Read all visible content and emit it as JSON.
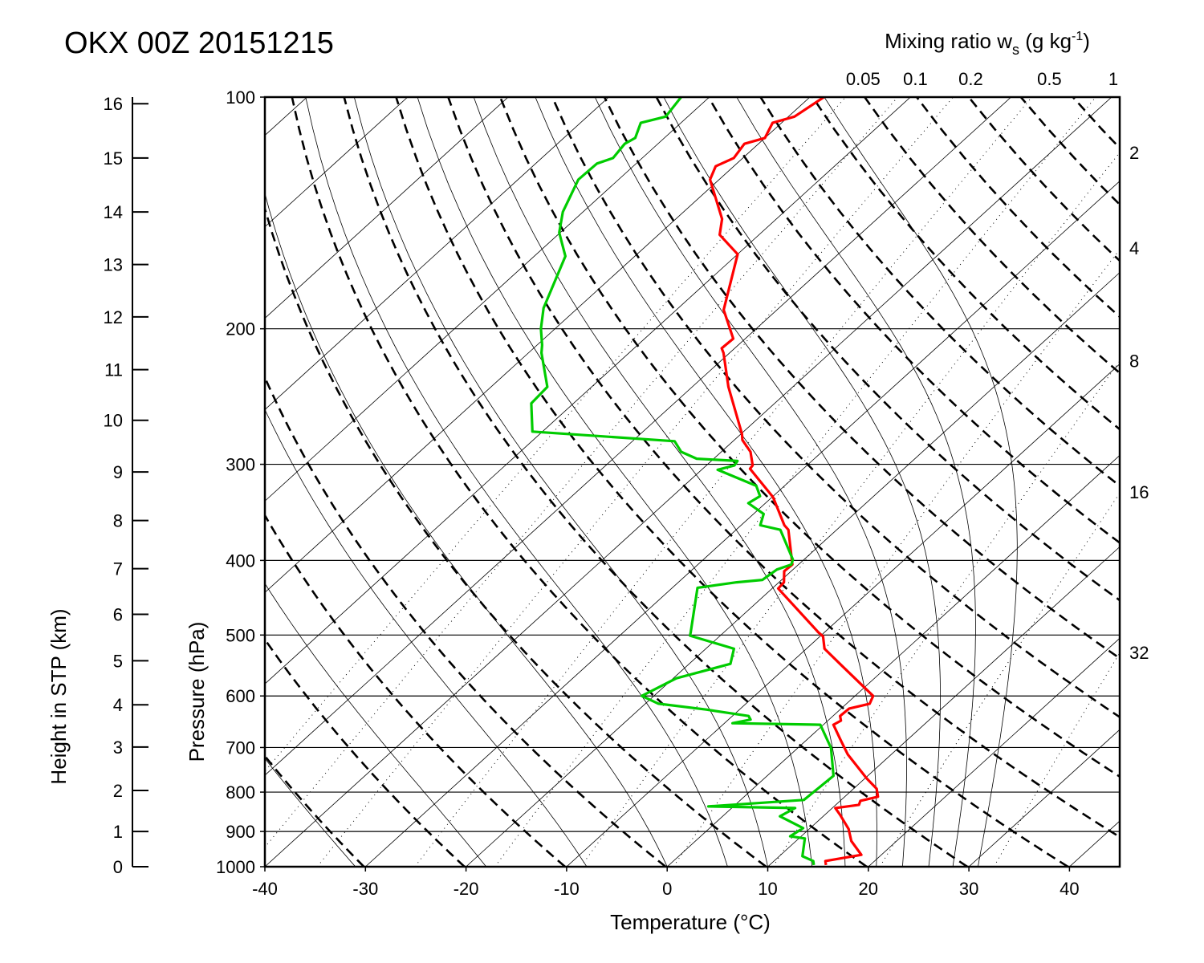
{
  "chart_data": {
    "type": "line",
    "subtype": "skew-T log-p",
    "title": "OKX 00Z 20151215",
    "xlabel": "Temperature (°C)",
    "ylabel": "Pressure (hPa)",
    "y2label": "Height in STP (km)",
    "mixing_ratio_title": {
      "main": "Mixing ratio w",
      "sub": "s",
      "unit": " (g kg",
      "sup": "-1",
      "close": ")"
    },
    "xlim": [
      -40,
      45
    ],
    "ylim": [
      1000,
      100
    ],
    "x_ticks": [
      -40,
      -30,
      -20,
      -10,
      0,
      10,
      20,
      30,
      40
    ],
    "x_tick_labels": [
      "-40",
      "-30",
      "-20",
      "-10",
      "0",
      "10",
      "20",
      "30",
      "40"
    ],
    "pressure_ticks": [
      100,
      200,
      300,
      400,
      500,
      600,
      700,
      800,
      900,
      1000
    ],
    "pressure_tick_labels": [
      "100",
      "200",
      "300",
      "400",
      "500",
      "600",
      "700",
      "800",
      "900",
      "1000"
    ],
    "height_ticks": [
      {
        "km": 0,
        "label": "0",
        "p": 1000
      },
      {
        "km": 1,
        "label": "1",
        "p": 900
      },
      {
        "km": 2,
        "label": "2",
        "p": 796
      },
      {
        "km": 3,
        "label": "3",
        "p": 699
      },
      {
        "km": 4,
        "label": "4",
        "p": 616
      },
      {
        "km": 5,
        "label": "5",
        "p": 540
      },
      {
        "km": 6,
        "label": "6",
        "p": 470
      },
      {
        "km": 7,
        "label": "7",
        "p": 410
      },
      {
        "km": 8,
        "label": "8",
        "p": 355
      },
      {
        "km": 9,
        "label": "9",
        "p": 307
      },
      {
        "km": 10,
        "label": "10",
        "p": 263
      },
      {
        "km": 11,
        "label": "11",
        "p": 226
      },
      {
        "km": 12,
        "label": "12",
        "p": 193
      },
      {
        "km": 13,
        "label": "13",
        "p": 165
      },
      {
        "km": 14,
        "label": "14",
        "p": 141
      },
      {
        "km": 15,
        "label": "15",
        "p": 120
      },
      {
        "km": 16,
        "label": "16",
        "p": 102
      }
    ],
    "mixing_ratio_top": [
      {
        "w": 0.05,
        "label": "0.05"
      },
      {
        "w": 0.1,
        "label": "0.1"
      },
      {
        "w": 0.2,
        "label": "0.2"
      },
      {
        "w": 0.5,
        "label": "0.5"
      },
      {
        "w": 1,
        "label": "1"
      }
    ],
    "mixing_ratio_right": [
      {
        "w": 2,
        "label": "2"
      },
      {
        "w": 4,
        "label": "4"
      },
      {
        "w": 8,
        "label": "8"
      },
      {
        "w": 16,
        "label": "16"
      },
      {
        "w": 32,
        "label": "32"
      }
    ],
    "isotherms_step_c": 10,
    "dry_adiabats_theta_k": [
      213,
      223,
      233,
      243,
      253,
      263,
      273,
      283,
      293,
      303,
      313,
      323,
      333,
      343,
      353,
      363,
      373,
      383,
      393,
      403,
      413,
      423,
      433,
      443,
      453,
      463,
      473,
      483,
      493,
      503
    ],
    "moist_adiabats_t1000_c": [
      -31,
      -18,
      -8,
      0,
      6,
      10,
      14.4,
      17.7,
      20.8,
      23.4,
      26,
      28.4,
      30.9
    ],
    "series": [
      {
        "name": "Temperature",
        "color": "#ff0000",
        "points_p_t": [
          [
            995,
            15.6
          ],
          [
            983,
            15.1
          ],
          [
            965,
            18.0
          ],
          [
            926,
            15.5
          ],
          [
            893,
            13.9
          ],
          [
            856,
            11.5
          ],
          [
            839,
            10.3
          ],
          [
            831,
            12.3
          ],
          [
            821,
            12.0
          ],
          [
            811,
            13.3
          ],
          [
            792,
            12.3
          ],
          [
            768,
            10.2
          ],
          [
            715,
            5.7
          ],
          [
            686,
            3.5
          ],
          [
            654,
            1.0
          ],
          [
            646,
            1.3
          ],
          [
            637,
            0.7
          ],
          [
            623,
            0.8
          ],
          [
            614,
            2.3
          ],
          [
            600,
            1.8
          ],
          [
            549,
            -4.5
          ],
          [
            521,
            -8.2
          ],
          [
            502,
            -9.7
          ],
          [
            496,
            -10.6
          ],
          [
            435,
            -19.4
          ],
          [
            427,
            -19.5
          ],
          [
            413,
            -20.7
          ],
          [
            405,
            -20.6
          ],
          [
            365,
            -24.8
          ],
          [
            360,
            -25.7
          ],
          [
            331,
            -29.9
          ],
          [
            304,
            -35.3
          ],
          [
            301,
            -35.4
          ],
          [
            289,
            -37.1
          ],
          [
            279,
            -39.2
          ],
          [
            274,
            -39.9
          ],
          [
            238,
            -46.4
          ],
          [
            215,
            -50.6
          ],
          [
            212,
            -51.3
          ],
          [
            206,
            -51.2
          ],
          [
            189,
            -55.3
          ],
          [
            160,
            -60.0
          ],
          [
            151,
            -63.9
          ],
          [
            144,
            -65.4
          ],
          [
            128,
            -70.9
          ],
          [
            123,
            -71.8
          ],
          [
            120,
            -70.9
          ],
          [
            115,
            -71.4
          ],
          [
            113,
            -70.0
          ],
          [
            108,
            -70.9
          ],
          [
            106,
            -69.4
          ],
          [
            100,
            -68.6
          ]
        ]
      },
      {
        "name": "Dewpoint",
        "color": "#00cc00",
        "points_p_t": [
          [
            995,
            14.4
          ],
          [
            983,
            13.9
          ],
          [
            969,
            12.3
          ],
          [
            919,
            10.6
          ],
          [
            913,
            8.9
          ],
          [
            891,
            9.3
          ],
          [
            860,
            5.7
          ],
          [
            839,
            6.3
          ],
          [
            835,
            -2.5
          ],
          [
            819,
            6.3
          ],
          [
            762,
            6.6
          ],
          [
            701,
            3.3
          ],
          [
            654,
            -0.3
          ],
          [
            651,
            -9.2
          ],
          [
            644,
            -7.8
          ],
          [
            637,
            -8.4
          ],
          [
            625,
            -13.3
          ],
          [
            614,
            -18.7
          ],
          [
            600,
            -21.2
          ],
          [
            569,
            -19.7
          ],
          [
            545,
            -15.9
          ],
          [
            521,
            -17.2
          ],
          [
            501,
            -23.0
          ],
          [
            496,
            -23.3
          ],
          [
            434,
            -27.5
          ],
          [
            427,
            -24.2
          ],
          [
            424,
            -21.9
          ],
          [
            411,
            -21.6
          ],
          [
            405,
            -20.7
          ],
          [
            399,
            -21.1
          ],
          [
            365,
            -25.6
          ],
          [
            360,
            -28.1
          ],
          [
            348,
            -29.0
          ],
          [
            337,
            -31.7
          ],
          [
            330,
            -31.3
          ],
          [
            320,
            -32.8
          ],
          [
            305,
            -38.4
          ],
          [
            301,
            -37.2
          ],
          [
            297,
            -37.4
          ],
          [
            295,
            -41.7
          ],
          [
            289,
            -44.0
          ],
          [
            280,
            -45.8
          ],
          [
            272,
            -61.0
          ],
          [
            250,
            -64.2
          ],
          [
            238,
            -64.4
          ],
          [
            215,
            -68.7
          ],
          [
            210,
            -69.5
          ],
          [
            200,
            -71.4
          ],
          [
            188,
            -73.4
          ],
          [
            161,
            -76.9
          ],
          [
            150,
            -80.1
          ],
          [
            141,
            -82.0
          ],
          [
            128,
            -84.0
          ],
          [
            122,
            -83.9
          ],
          [
            120,
            -82.9
          ],
          [
            115,
            -83.3
          ],
          [
            113,
            -82.9
          ],
          [
            108,
            -84.0
          ],
          [
            106,
            -82.2
          ],
          [
            100,
            -82.8
          ]
        ]
      }
    ]
  }
}
